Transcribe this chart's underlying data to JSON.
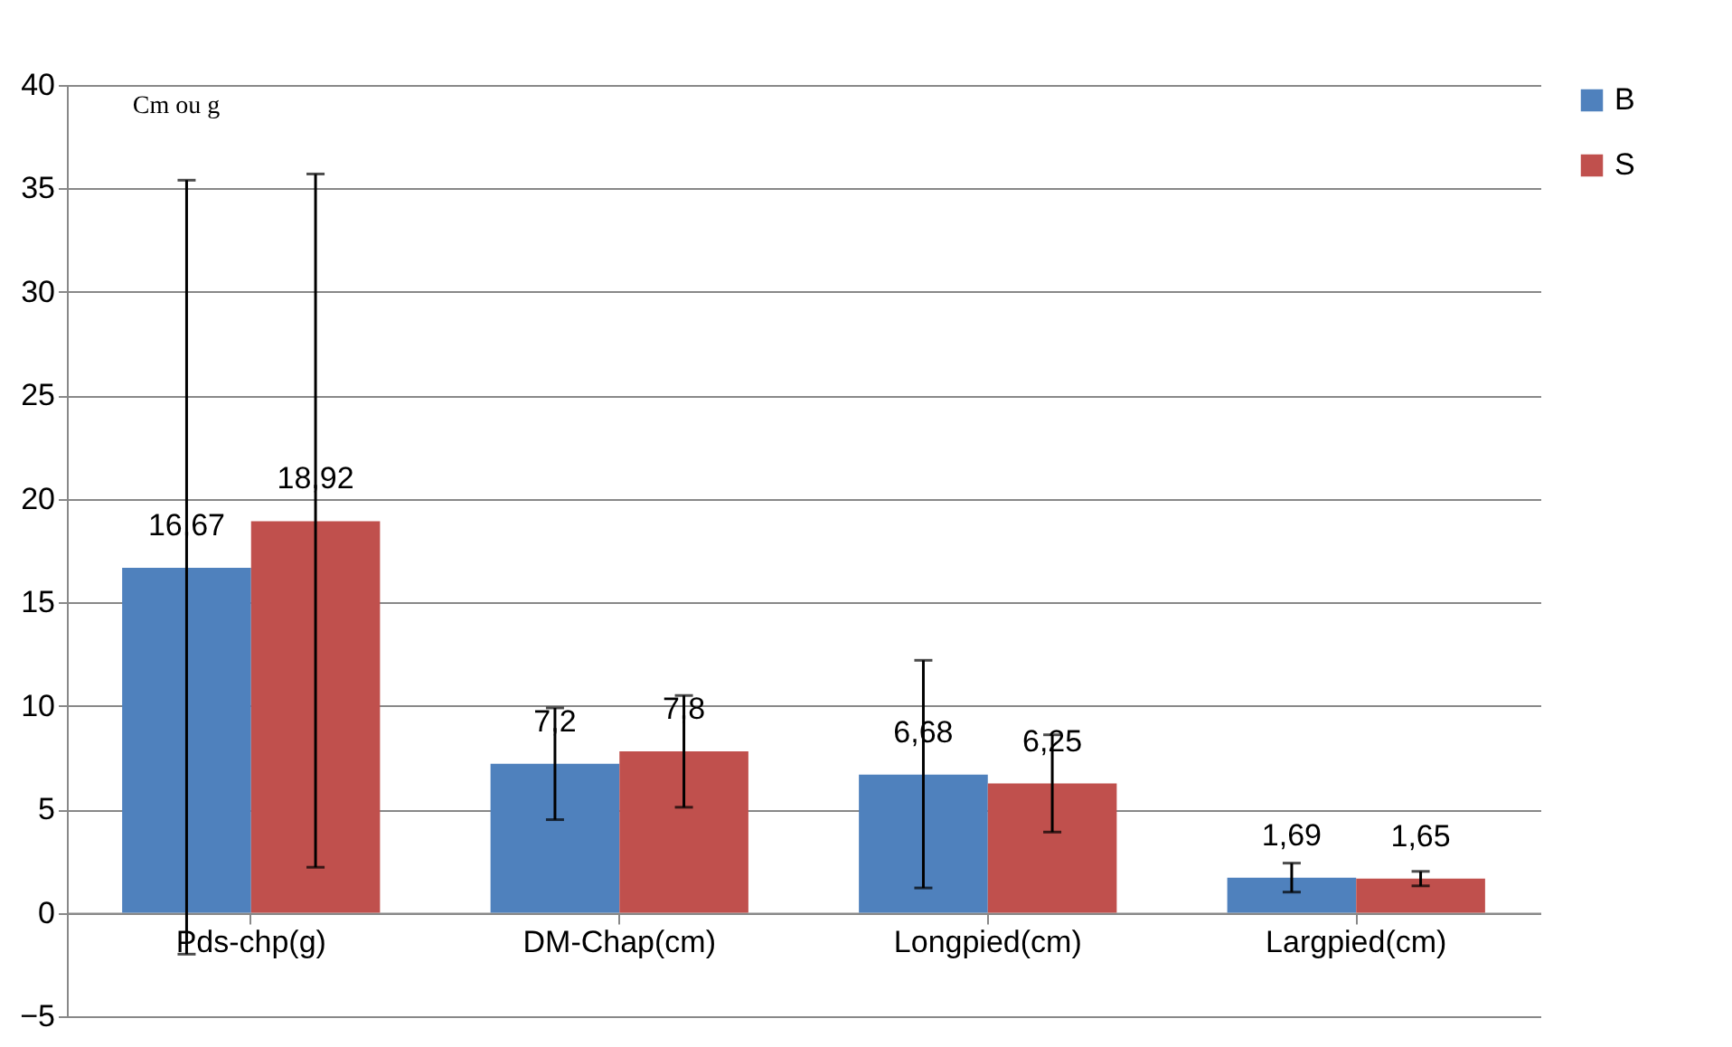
{
  "chart_data": {
    "type": "bar",
    "ylabel": "Cm ou g",
    "categories": [
      "Pds-chp(g)",
      "DM-Chap(cm)",
      "Longpied(cm)",
      "Largpied(cm)"
    ],
    "series": [
      {
        "name": "B",
        "color": "#4f81bd",
        "values": [
          16.67,
          7.2,
          6.68,
          1.69
        ],
        "value_labels": [
          "16,67",
          "7,2",
          "6,68",
          "1,69"
        ],
        "errors": [
          [
            -2,
            35.4
          ],
          [
            4.5,
            9.9
          ],
          [
            1.2,
            12.2
          ],
          [
            1,
            2.4
          ]
        ]
      },
      {
        "name": "S",
        "color": "#c0504d",
        "values": [
          18.92,
          7.8,
          6.25,
          1.65
        ],
        "value_labels": [
          "18,92",
          "7,8",
          "6,25",
          "1,65"
        ],
        "errors": [
          [
            2.2,
            35.7
          ],
          [
            5.1,
            10.5
          ],
          [
            3.9,
            8.6
          ],
          [
            1.3,
            2
          ]
        ]
      }
    ],
    "ylim": [
      -5,
      40
    ],
    "yticks": [
      -5,
      0,
      5,
      10,
      15,
      20,
      25,
      30,
      35,
      40
    ],
    "grid": "y",
    "legend": "right"
  }
}
